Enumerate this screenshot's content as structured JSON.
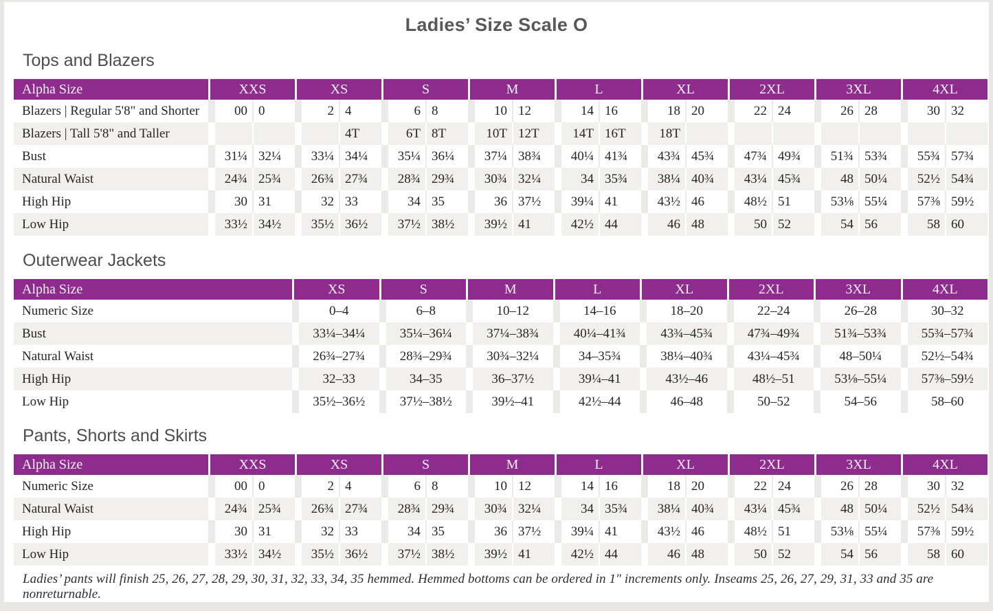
{
  "page_title": "Ladies’ Size Scale O",
  "colors": {
    "header_purple": "#8d2c8d",
    "header_text": "#f9f1f9",
    "row_stripe": "#f2f0ee",
    "body_text": "#262626",
    "title_gray": "#58585a",
    "section_heading_gray": "#4d4d4f",
    "page_frame_gray": "#e8e7e6"
  },
  "footnote": "Ladies’ pants will finish 25, 26, 27, 28, 29, 30, 31, 32, 33, 34, 35 hemmed. Hemmed bottoms can be ordered in 1″ increments only. Inseams 25, 26, 27, 29, 31, 33 and 35 are nonreturnable.",
  "tables": [
    {
      "title": "Tops and Blazers",
      "type": "paired",
      "header_label": "Alpha Size",
      "sizes": [
        "XXS",
        "XS",
        "S",
        "M",
        "L",
        "XL",
        "2XL",
        "3XL",
        "4XL"
      ],
      "rows": [
        {
          "label": "Blazers  |  Regular 5'8\" and Shorter",
          "values": [
            [
              "00",
              "0"
            ],
            [
              "2",
              "4"
            ],
            [
              "6",
              "8"
            ],
            [
              "10",
              "12"
            ],
            [
              "14",
              "16"
            ],
            [
              "18",
              "20"
            ],
            [
              "22",
              "24"
            ],
            [
              "26",
              "28"
            ],
            [
              "30",
              "32"
            ]
          ]
        },
        {
          "label": "Blazers  |  Tall 5'8\" and Taller",
          "values": [
            [
              "",
              ""
            ],
            [
              "",
              "4T"
            ],
            [
              "6T",
              "8T"
            ],
            [
              "10T",
              "12T"
            ],
            [
              "14T",
              "16T"
            ],
            [
              "18T",
              ""
            ],
            [
              "",
              ""
            ],
            [
              "",
              ""
            ],
            [
              "",
              ""
            ]
          ]
        },
        {
          "label": "Bust",
          "values": [
            [
              "31¼",
              "32¼"
            ],
            [
              "33¼",
              "34¼"
            ],
            [
              "35¼",
              "36¼"
            ],
            [
              "37¼",
              "38¾"
            ],
            [
              "40¼",
              "41¾"
            ],
            [
              "43¾",
              "45¾"
            ],
            [
              "47¾",
              "49¾"
            ],
            [
              "51¾",
              "53¾"
            ],
            [
              "55¾",
              "57¾"
            ]
          ]
        },
        {
          "label": "Natural Waist",
          "values": [
            [
              "24¾",
              "25¾"
            ],
            [
              "26¾",
              "27¾"
            ],
            [
              "28¾",
              "29¾"
            ],
            [
              "30¾",
              "32¼"
            ],
            [
              "34",
              "35¾"
            ],
            [
              "38¼",
              "40¾"
            ],
            [
              "43¼",
              "45¾"
            ],
            [
              "48",
              "50¼"
            ],
            [
              "52½",
              "54¾"
            ]
          ]
        },
        {
          "label": "High Hip",
          "values": [
            [
              "30",
              "31"
            ],
            [
              "32",
              "33"
            ],
            [
              "34",
              "35"
            ],
            [
              "36",
              "37½"
            ],
            [
              "39¼",
              "41"
            ],
            [
              "43½",
              "46"
            ],
            [
              "48½",
              "51"
            ],
            [
              "53⅛",
              "55¼"
            ],
            [
              "57⅜",
              "59½"
            ]
          ]
        },
        {
          "label": "Low Hip",
          "values": [
            [
              "33½",
              "34½"
            ],
            [
              "35½",
              "36½"
            ],
            [
              "37½",
              "38½"
            ],
            [
              "39½",
              "41"
            ],
            [
              "42½",
              "44"
            ],
            [
              "46",
              "48"
            ],
            [
              "50",
              "52"
            ],
            [
              "54",
              "56"
            ],
            [
              "58",
              "60"
            ]
          ]
        }
      ]
    },
    {
      "title": "Outerwear Jackets",
      "type": "range",
      "header_label": "Alpha Size",
      "sizes": [
        "XS",
        "S",
        "M",
        "L",
        "XL",
        "2XL",
        "3XL",
        "4XL"
      ],
      "rows": [
        {
          "label": "Numeric Size",
          "values": [
            "0–4",
            "6–8",
            "10–12",
            "14–16",
            "18–20",
            "22–24",
            "26–28",
            "30–32"
          ]
        },
        {
          "label": "Bust",
          "values": [
            "33¼–34¼",
            "35¼–36¼",
            "37¼–38¾",
            "40¼–41¾",
            "43¾–45¾",
            "47¾–49¾",
            "51¾–53¾",
            "55¾–57¾"
          ]
        },
        {
          "label": "Natural Waist",
          "values": [
            "26¾–27¾",
            "28¾–29¾",
            "30¾–32¼",
            "34–35¾",
            "38¼–40¾",
            "43¼–45¾",
            "48–50¼",
            "52½–54¾"
          ]
        },
        {
          "label": "High Hip",
          "values": [
            "32–33",
            "34–35",
            "36–37½",
            "39¼–41",
            "43½–46",
            "48½–51",
            "53⅛–55¼",
            "57⅜–59½"
          ]
        },
        {
          "label": "Low Hip",
          "values": [
            "35½–36½",
            "37½–38½",
            "39½–41",
            "42½–44",
            "46–48",
            "50–52",
            "54–56",
            "58–60"
          ]
        }
      ]
    },
    {
      "title": "Pants, Shorts and Skirts",
      "type": "paired",
      "header_label": "Alpha Size",
      "sizes": [
        "XXS",
        "XS",
        "S",
        "M",
        "L",
        "XL",
        "2XL",
        "3XL",
        "4XL"
      ],
      "rows": [
        {
          "label": "Numeric Size",
          "values": [
            [
              "00",
              "0"
            ],
            [
              "2",
              "4"
            ],
            [
              "6",
              "8"
            ],
            [
              "10",
              "12"
            ],
            [
              "14",
              "16"
            ],
            [
              "18",
              "20"
            ],
            [
              "22",
              "24"
            ],
            [
              "26",
              "28"
            ],
            [
              "30",
              "32"
            ]
          ]
        },
        {
          "label": "Natural Waist",
          "values": [
            [
              "24¾",
              "25¾"
            ],
            [
              "26¾",
              "27¾"
            ],
            [
              "28¾",
              "29¾"
            ],
            [
              "30¾",
              "32¼"
            ],
            [
              "34",
              "35¾"
            ],
            [
              "38¼",
              "40¾"
            ],
            [
              "43¼",
              "45¾"
            ],
            [
              "48",
              "50¼"
            ],
            [
              "52½",
              "54¾"
            ]
          ]
        },
        {
          "label": "High Hip",
          "values": [
            [
              "30",
              "31"
            ],
            [
              "32",
              "33"
            ],
            [
              "34",
              "35"
            ],
            [
              "36",
              "37½"
            ],
            [
              "39¼",
              "41"
            ],
            [
              "43½",
              "46"
            ],
            [
              "48½",
              "51"
            ],
            [
              "53⅛",
              "55¼"
            ],
            [
              "57⅜",
              "59½"
            ]
          ]
        },
        {
          "label": "Low Hip",
          "values": [
            [
              "33½",
              "34½"
            ],
            [
              "35½",
              "36½"
            ],
            [
              "37½",
              "38½"
            ],
            [
              "39½",
              "41"
            ],
            [
              "42½",
              "44"
            ],
            [
              "46",
              "48"
            ],
            [
              "50",
              "52"
            ],
            [
              "54",
              "56"
            ],
            [
              "58",
              "60"
            ]
          ]
        }
      ]
    }
  ]
}
